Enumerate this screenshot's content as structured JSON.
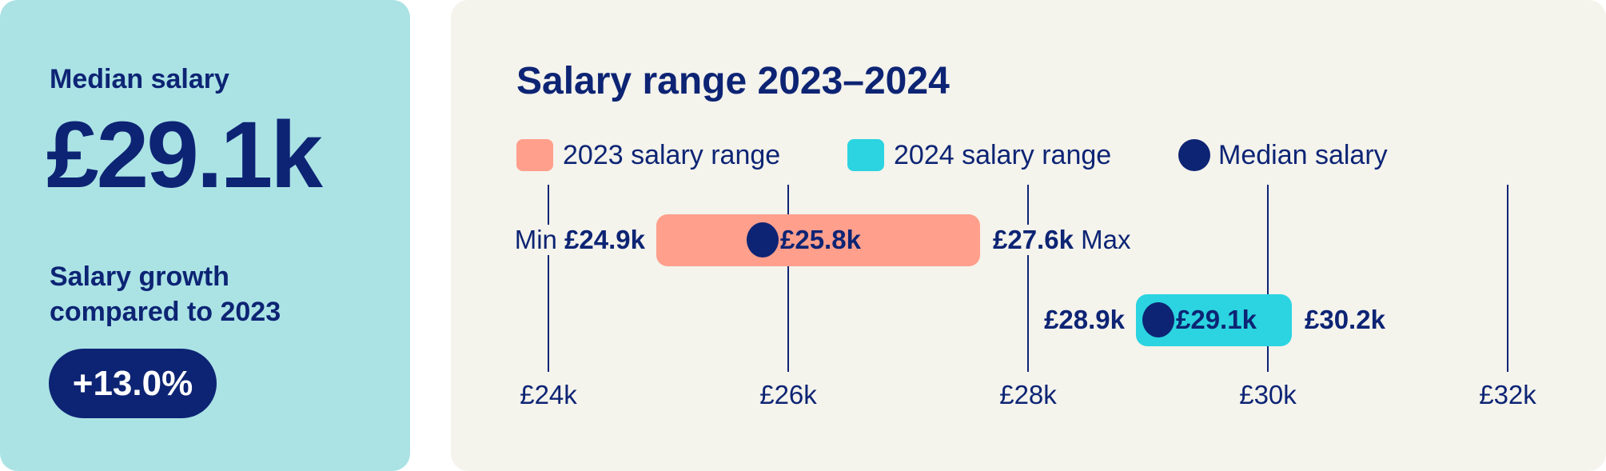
{
  "summary": {
    "median_label": "Median salary",
    "median_value": "£29.1k",
    "growth_label_line1": "Salary growth",
    "growth_label_line2": "compared to 2023",
    "growth_value": "+13.0%"
  },
  "colors": {
    "navy": "#0D2474",
    "range_2023": "#FF9F8C",
    "range_2024": "#2BD4E0",
    "left_bg": "#ABE3E5",
    "right_bg": "#F4F3EC"
  },
  "chart_data": {
    "type": "range-bar",
    "title": "Salary range 2023–2024",
    "legend": [
      "2023 salary range",
      "2024 salary range",
      "Median salary"
    ],
    "legend_placement": "top",
    "x_ticks": [
      "£24k",
      "£26k",
      "£28k",
      "£30k",
      "£32k"
    ],
    "x_tick_values": [
      24,
      26,
      28,
      30,
      32
    ],
    "xlim": [
      24,
      32
    ],
    "grid": true,
    "series": [
      {
        "name": "2023 salary range",
        "min": 24.9,
        "median": 25.8,
        "max": 27.6,
        "min_label": "£24.9k",
        "median_label": "£25.8k",
        "max_label": "£27.6k",
        "min_prefix": "Min",
        "max_suffix": "Max"
      },
      {
        "name": "2024 salary range",
        "min": 28.9,
        "median": 29.1,
        "max": 30.2,
        "min_label": "£28.9k",
        "median_label": "£29.1k",
        "max_label": "£30.2k"
      }
    ]
  }
}
